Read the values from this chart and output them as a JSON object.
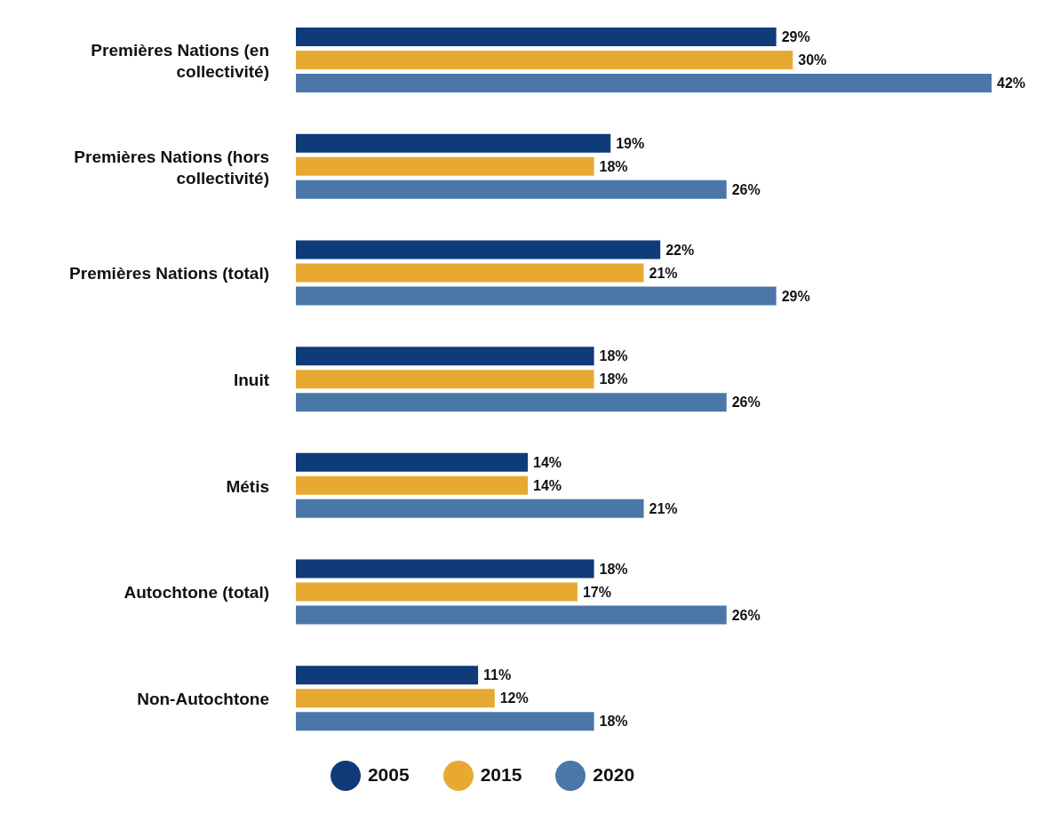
{
  "chart_data": {
    "type": "bar",
    "orientation": "horizontal",
    "categories": [
      "Premières Nations (en collectivité)",
      "Premières Nations (hors collectivité)",
      "Premières Nations (total)",
      "Inuit",
      "Métis",
      "Autochtone (total)",
      "Non-Autochtone"
    ],
    "series": [
      {
        "name": "2005",
        "color": "#0f3b78",
        "values": [
          29,
          19,
          22,
          18,
          14,
          18,
          11
        ],
        "value_labels": [
          "29%",
          "19%",
          "22%",
          "18%",
          "14%",
          "18%",
          "11%"
        ]
      },
      {
        "name": "2015",
        "color": "#e8a933",
        "values": [
          30,
          18,
          21,
          18,
          14,
          17,
          12
        ],
        "value_labels": [
          "30%",
          "18%",
          "21%",
          "18%",
          "14%",
          "17%",
          "12%"
        ]
      },
      {
        "name": "2020",
        "color": "#4a77a8",
        "values": [
          42,
          26,
          29,
          26,
          21,
          26,
          18
        ],
        "value_labels": [
          "42%",
          "26%",
          "29%",
          "26%",
          "21%",
          "26%",
          "18%"
        ]
      }
    ],
    "legend": "bottom",
    "grid": false
  }
}
